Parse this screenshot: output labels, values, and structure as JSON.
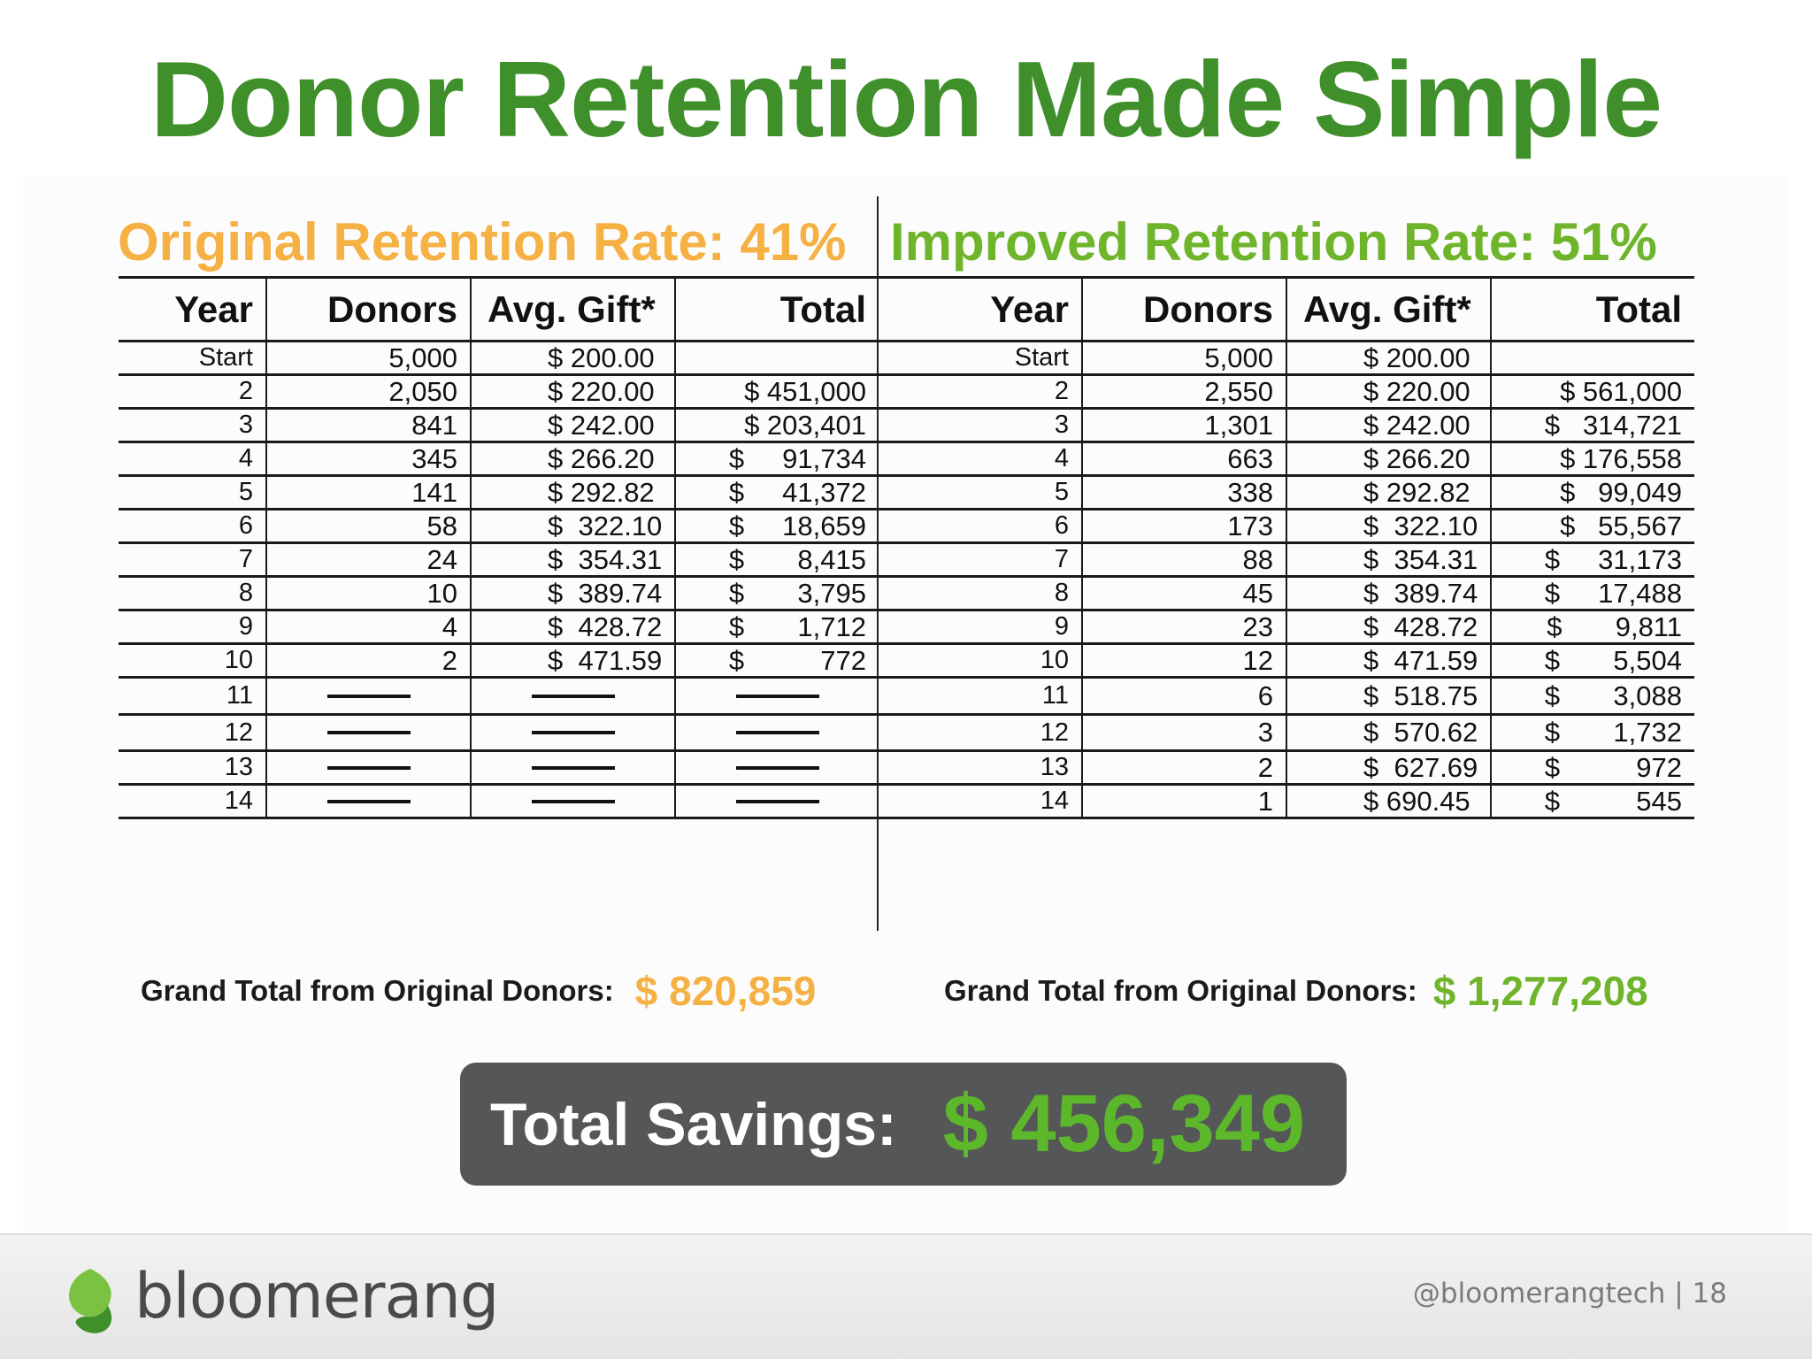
{
  "title": "Donor Retention Made Simple",
  "original": {
    "heading": "Original Retention Rate: 41%",
    "columns": [
      "Year",
      "Donors",
      "Avg. Gift*",
      "Total"
    ],
    "rows": [
      [
        "Start",
        "5,000",
        "$ 200.00",
        ""
      ],
      [
        "2",
        "2,050",
        "$ 220.00",
        "$ 451,000"
      ],
      [
        "3",
        "841",
        "$ 242.00",
        "$ 203,401"
      ],
      [
        "4",
        "345",
        "$ 266.20",
        "$     91,734"
      ],
      [
        "5",
        "141",
        "$ 292.82",
        "$     41,372"
      ],
      [
        "6",
        "58",
        "$  322.10",
        "$     18,659"
      ],
      [
        "7",
        "24",
        "$  354.31",
        "$       8,415"
      ],
      [
        "8",
        "10",
        "$  389.74",
        "$       3,795"
      ],
      [
        "9",
        "4",
        "$  428.72",
        "$       1,712"
      ],
      [
        "10",
        "2",
        "$  471.59",
        "$          772"
      ],
      [
        "11",
        "—",
        "—",
        "—"
      ],
      [
        "12",
        "—",
        "—",
        "—"
      ],
      [
        "13",
        "—",
        "—",
        "—"
      ],
      [
        "14",
        "—",
        "—",
        "—"
      ]
    ],
    "grand_total_label": "Grand Total from Original Donors:",
    "grand_total_value": "$ 820,859",
    "color": "#f6b144"
  },
  "improved": {
    "heading": "Improved Retention Rate: 51%",
    "columns": [
      "Year",
      "Donors",
      "Avg. Gift*",
      "Total"
    ],
    "rows": [
      [
        "Start",
        "5,000",
        "$ 200.00",
        ""
      ],
      [
        "2",
        "2,550",
        "$ 220.00",
        "$ 561,000"
      ],
      [
        "3",
        "1,301",
        "$ 242.00",
        "$   314,721"
      ],
      [
        "4",
        "663",
        "$ 266.20",
        "$ 176,558"
      ],
      [
        "5",
        "338",
        "$ 292.82",
        "$   99,049"
      ],
      [
        "6",
        "173",
        "$  322.10",
        "$   55,567"
      ],
      [
        "7",
        "88",
        "$  354.31",
        "$     31,173"
      ],
      [
        "8",
        "45",
        "$  389.74",
        "$     17,488"
      ],
      [
        "9",
        "23",
        "$  428.72",
        "$       9,811"
      ],
      [
        "10",
        "12",
        "$  471.59",
        "$       5,504"
      ],
      [
        "11",
        "6",
        "$  518.75",
        "$       3,088"
      ],
      [
        "12",
        "3",
        "$  570.62",
        "$       1,732"
      ],
      [
        "13",
        "2",
        "$  627.69",
        "$          972"
      ],
      [
        "14",
        "1",
        "$ 690.45",
        "$          545"
      ]
    ],
    "grand_total_label": "Grand Total from Original Donors:",
    "grand_total_value": "$ 1,277,208",
    "color": "#6fb52c"
  },
  "savings": {
    "label": "Total Savings:",
    "value": "$ 456,349"
  },
  "footer": {
    "logo_text": "bloomerang",
    "logo_icon": "bloomerang-leaf-icon",
    "handle": "@bloomerangtech | 18"
  },
  "colors": {
    "title": "#3f8f2a",
    "orange": "#f6b144",
    "green": "#6fb52c",
    "savings_box": "#555657"
  }
}
